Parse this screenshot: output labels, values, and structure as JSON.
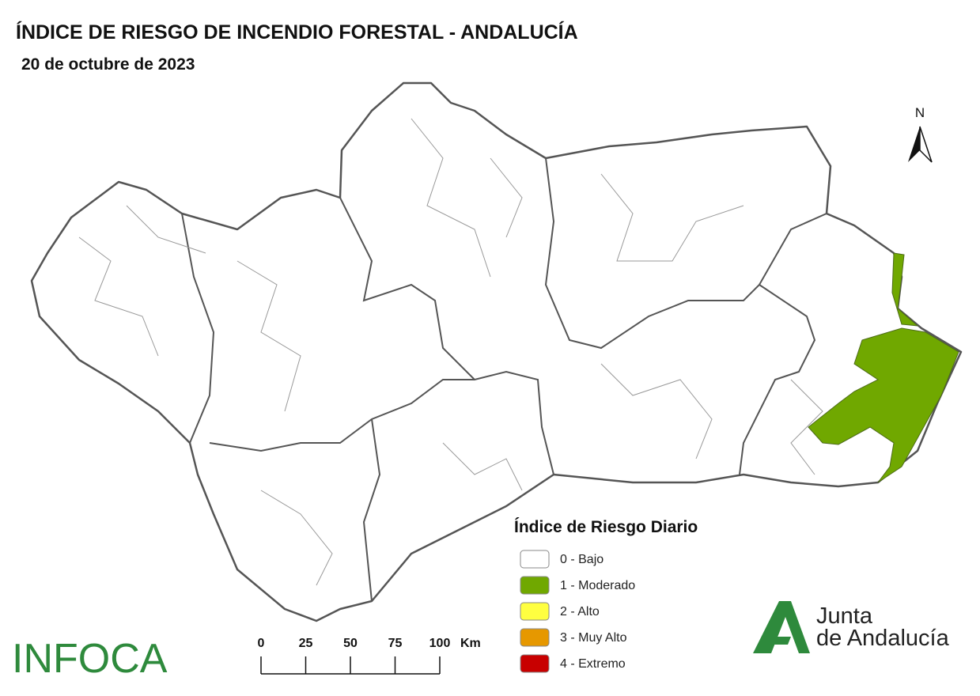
{
  "header": {
    "title": "ÍNDICE DE RIESGO DE INCENDIO FORESTAL - ANDALUCÍA",
    "date": "20 de octubre de 2023"
  },
  "north_arrow": {
    "label": "N"
  },
  "legend": {
    "title": "Índice de Riesgo Diario",
    "items": [
      {
        "label": "0 - Bajo",
        "color": "#ffffff"
      },
      {
        "label": "1 - Moderado",
        "color": "#70a800"
      },
      {
        "label": "2 - Alto",
        "color": "#ffff40"
      },
      {
        "label": "3 - Muy Alto",
        "color": "#e69800"
      },
      {
        "label": "4 - Extremo",
        "color": "#c80000"
      }
    ]
  },
  "scale_bar": {
    "ticks": [
      0,
      25,
      50,
      75,
      100
    ],
    "unit": "Km"
  },
  "logos": {
    "infoca": "INFOCA",
    "junta_line1": "Junta",
    "junta_line2": "de Andalucía"
  }
}
